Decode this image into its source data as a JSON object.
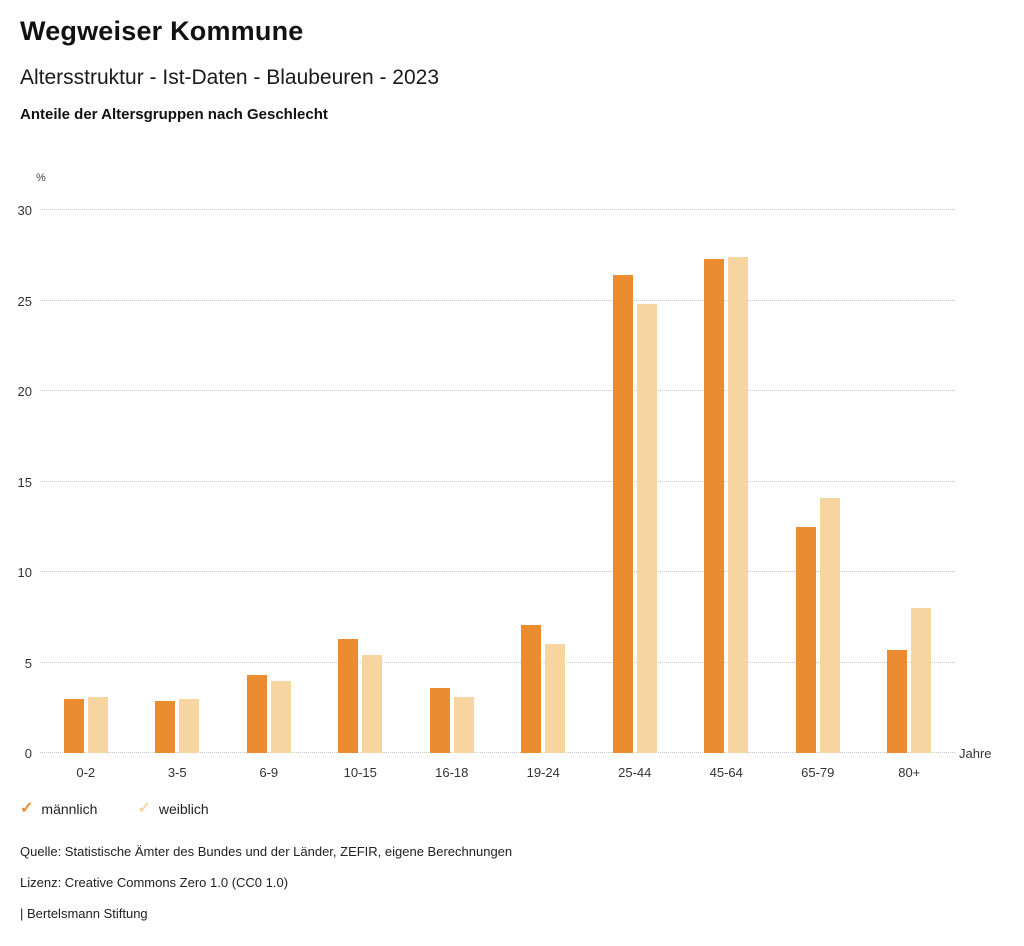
{
  "header": {
    "brand": "Wegweiser Kommune",
    "title": "Altersstruktur - Ist-Daten - Blaubeuren - 2023",
    "subtitle": "Anteile der Altersgruppen nach Geschlecht"
  },
  "chart_data": {
    "type": "bar",
    "categories": [
      "0-2",
      "3-5",
      "6-9",
      "10-15",
      "16-18",
      "19-24",
      "25-44",
      "45-64",
      "65-79",
      "80+"
    ],
    "series": [
      {
        "name": "männlich",
        "color": "#ec8c30",
        "values": [
          3.0,
          2.9,
          4.3,
          6.3,
          3.6,
          7.1,
          26.4,
          27.3,
          12.5,
          5.7
        ]
      },
      {
        "name": "weiblich",
        "color": "#f7d5a1",
        "values": [
          3.1,
          3.0,
          4.0,
          5.4,
          3.1,
          6.0,
          24.8,
          27.4,
          14.1,
          8.0
        ]
      }
    ],
    "title": "Altersstruktur - Ist-Daten - Blaubeuren - 2023",
    "xlabel": "Jahre",
    "ylabel": "%",
    "ylim": [
      0,
      30
    ],
    "yticks": [
      0,
      5,
      10,
      15,
      20,
      25,
      30
    ],
    "grid": true,
    "legend_position": "bottom"
  },
  "legend": {
    "items": [
      {
        "label": "männlich",
        "color": "#ec8c30",
        "icon": "check"
      },
      {
        "label": "weiblich",
        "color": "#f7d5a1",
        "icon": "check"
      }
    ]
  },
  "footer": {
    "source": "Quelle: Statistische Ämter des Bundes und der Länder, ZEFIR, eigene Berechnungen",
    "license": "Lizenz: Creative Commons Zero 1.0 (CC0 1.0)",
    "attribution": "| Bertelsmann Stiftung"
  }
}
